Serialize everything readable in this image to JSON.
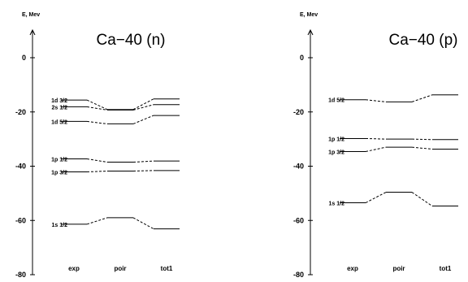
{
  "chart_data": [
    {
      "type": "line",
      "title": "Ca−40 (n)",
      "ylabel": "E, Mev",
      "ylim": [
        -80,
        8
      ],
      "yticks": [
        0,
        -20,
        -40,
        -60,
        -80
      ],
      "categories": [
        "exp",
        "poir",
        "tot1"
      ],
      "series": [
        {
          "name": "1d 3/2",
          "values": [
            -15.6,
            -19.1,
            -15.2
          ]
        },
        {
          "name": "2s 1/2",
          "values": [
            -18.1,
            -19.3,
            -17.3
          ]
        },
        {
          "name": "1d 5/2",
          "values": [
            -23.5,
            -24.4,
            -21.3
          ]
        },
        {
          "name": "1p 1/2",
          "values": [
            -37.3,
            -38.5,
            -38.1
          ]
        },
        {
          "name": "1p 3/2",
          "values": [
            -42.1,
            -41.8,
            -41.6
          ]
        },
        {
          "name": "1s 1/2",
          "values": [
            -61.4,
            -59.0,
            -63.1
          ]
        }
      ]
    },
    {
      "type": "line",
      "title": "Ca−40 (p)",
      "ylabel": "E, Mev",
      "ylim": [
        -80,
        8
      ],
      "yticks": [
        0,
        -20,
        -40,
        -60,
        -80
      ],
      "categories": [
        "exp",
        "poir",
        "tot1"
      ],
      "series": [
        {
          "name": "1d 5/2",
          "values": [
            -15.5,
            -16.3,
            -13.7
          ]
        },
        {
          "name": "1p 1/2",
          "values": [
            -29.8,
            -30.0,
            -30.2
          ]
        },
        {
          "name": "1p 3/2",
          "values": [
            -34.6,
            -33.0,
            -33.7
          ]
        },
        {
          "name": "1s 1/2",
          "values": [
            -53.5,
            -49.6,
            -54.7
          ]
        }
      ]
    }
  ]
}
